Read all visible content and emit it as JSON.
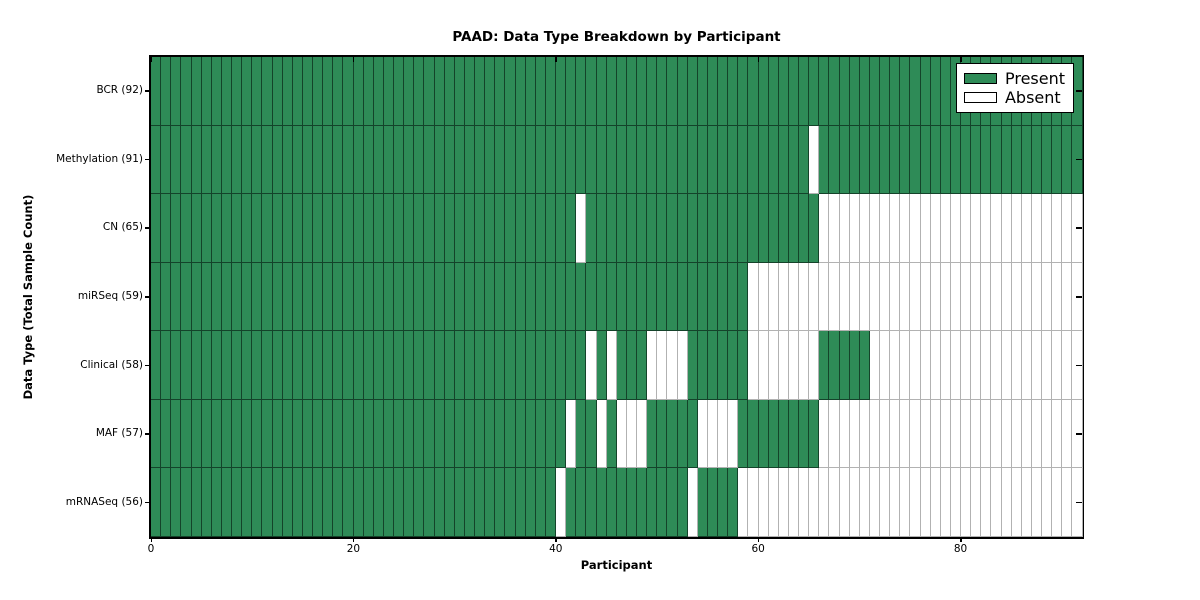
{
  "chart_data": {
    "type": "heatmap",
    "title": "PAAD: Data Type Breakdown by Participant",
    "xlabel": "Participant",
    "ylabel": "Data Type (Total Sample Count)",
    "x_ticks": [
      0,
      20,
      40,
      60,
      80
    ],
    "x_range": [
      0,
      92
    ],
    "n_participants": 92,
    "grid": false,
    "legend_position": "upper right",
    "legend": [
      {
        "label": "Present",
        "color": "#2e8b57"
      },
      {
        "label": "Absent",
        "color": "#ffffff"
      }
    ],
    "rows": [
      {
        "name": "BCR",
        "label": "BCR (92)",
        "present_count": 92,
        "absent": []
      },
      {
        "name": "Methylation",
        "label": "Methylation (91)",
        "present_count": 91,
        "absent": [
          65
        ]
      },
      {
        "name": "CN",
        "label": "CN (65)",
        "present_count": 65,
        "absent": [
          42,
          66,
          67,
          68,
          69,
          70,
          71,
          72,
          73,
          74,
          75,
          76,
          77,
          78,
          79,
          80,
          81,
          82,
          83,
          84,
          85,
          86,
          87,
          88,
          89,
          90,
          91
        ]
      },
      {
        "name": "miRSeq",
        "label": "miRSeq (59)",
        "present_count": 59,
        "absent": [
          59,
          60,
          61,
          62,
          63,
          64,
          65,
          66,
          67,
          68,
          69,
          70,
          71,
          72,
          73,
          74,
          75,
          76,
          77,
          78,
          79,
          80,
          81,
          82,
          83,
          84,
          85,
          86,
          87,
          88,
          89,
          90,
          91
        ]
      },
      {
        "name": "Clinical",
        "label": "Clinical (58)",
        "present_count": 58,
        "absent": [
          43,
          45,
          49,
          50,
          51,
          52,
          59,
          60,
          61,
          62,
          63,
          64,
          65,
          71,
          72,
          73,
          74,
          75,
          76,
          77,
          78,
          79,
          80,
          81,
          82,
          83,
          84,
          85,
          86,
          87,
          88,
          89,
          90,
          91
        ]
      },
      {
        "name": "MAF",
        "label": "MAF (57)",
        "present_count": 57,
        "absent": [
          41,
          44,
          46,
          47,
          48,
          54,
          55,
          56,
          57,
          66,
          67,
          68,
          69,
          70,
          71,
          72,
          73,
          74,
          75,
          76,
          77,
          78,
          79,
          80,
          81,
          82,
          83,
          84,
          85,
          86,
          87,
          88,
          89,
          90,
          91
        ]
      },
      {
        "name": "mRNASeq",
        "label": "mRNASeq (56)",
        "present_count": 56,
        "absent": [
          40,
          53,
          58,
          59,
          60,
          61,
          62,
          63,
          64,
          65,
          66,
          67,
          68,
          69,
          70,
          71,
          72,
          73,
          74,
          75,
          76,
          77,
          78,
          79,
          80,
          81,
          82,
          83,
          84,
          85,
          86,
          87,
          88,
          89,
          90,
          91
        ]
      }
    ]
  }
}
